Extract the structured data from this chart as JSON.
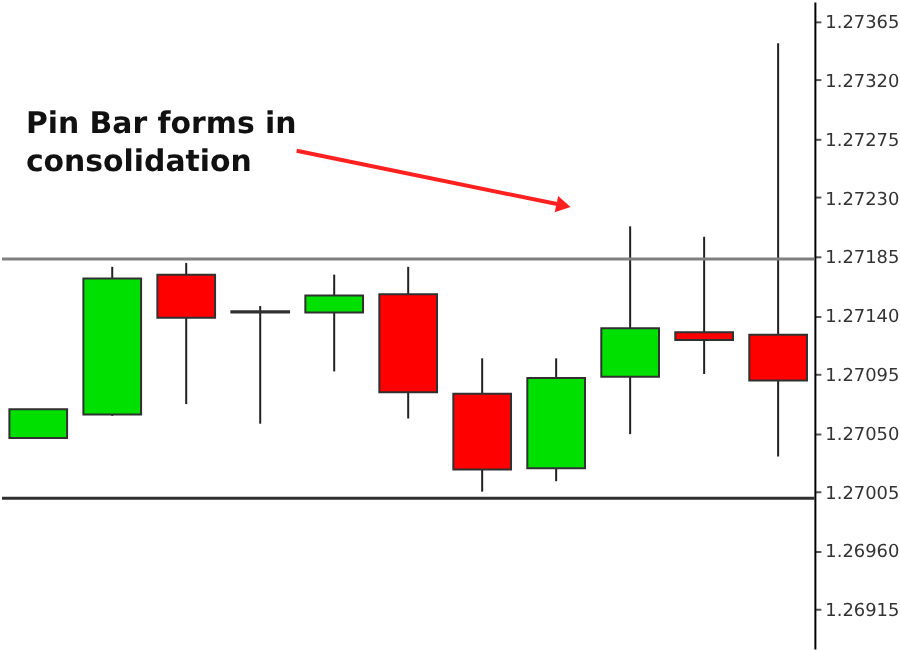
{
  "chart_data": {
    "type": "candlestick",
    "categories": [
      null,
      null,
      null,
      null,
      null,
      null,
      null,
      null,
      null,
      null,
      null
    ],
    "ohlc": [
      [
        1.27046,
        1.27068,
        1.27046,
        1.27068
      ],
      [
        1.27064,
        1.27177,
        1.27063,
        1.27168
      ],
      [
        1.27171,
        1.2718,
        1.27072,
        1.27138
      ],
      [
        1.27142,
        1.27147,
        1.27057,
        1.27143
      ],
      [
        1.27142,
        1.27171,
        1.27097,
        1.27155
      ],
      [
        1.27156,
        1.27177,
        1.27061,
        1.27081
      ],
      [
        1.2708,
        1.27107,
        1.27005,
        1.27022
      ],
      [
        1.27023,
        1.27107,
        1.27013,
        1.27092
      ],
      [
        1.27093,
        1.27208,
        1.27049,
        1.2713
      ],
      [
        1.27127,
        1.272,
        1.27095,
        1.27121
      ],
      [
        1.27125,
        1.27348,
        1.27032,
        1.2709
      ]
    ],
    "ylim": [
      1.26885,
      1.2738
    ],
    "yticks": [
      1.26915,
      {
        "value": 1.2696,
        "label": "1.26960"
      },
      1.27005,
      {
        "value": 1.2705,
        "label": "1.27050"
      },
      1.27095,
      {
        "value": 1.2714,
        "label": "1.27140"
      },
      1.27185,
      {
        "value": 1.2723,
        "label": "1.27230"
      },
      1.27275,
      {
        "value": 1.2732,
        "label": "1.27320"
      },
      1.27365
    ],
    "ref_lines": [
      {
        "axis": "y",
        "value": 1.27183,
        "color": "#808080"
      },
      {
        "axis": "y",
        "value": 1.27,
        "color": "#303030"
      }
    ],
    "annotations": [
      "Pin Bar forms in\nconsolidation"
    ],
    "grid": false,
    "tick_labels": "y"
  }
}
